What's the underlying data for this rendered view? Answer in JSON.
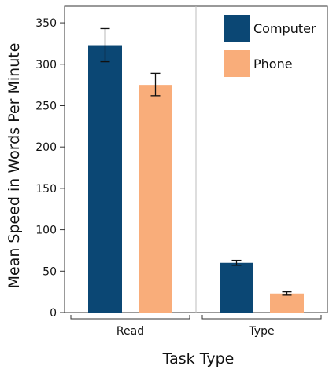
{
  "chart_data": {
    "type": "bar",
    "title": "",
    "xlabel": "Task Type",
    "ylabel": "Mean Speed in Words Per Minute",
    "categories": [
      "Read",
      "Type"
    ],
    "ylim": [
      0,
      370
    ],
    "yticks": [
      0,
      50,
      100,
      150,
      200,
      250,
      300,
      350
    ],
    "grid": false,
    "legend_position": "top-right",
    "series": [
      {
        "name": "Computer",
        "color": "#0b4774",
        "values": [
          323,
          60
        ],
        "error_low": [
          303,
          57
        ],
        "error_high": [
          343,
          63
        ]
      },
      {
        "name": "Phone",
        "color": "#f9ad7a",
        "values": [
          275,
          23
        ],
        "error_low": [
          262,
          21
        ],
        "error_high": [
          289,
          25
        ]
      }
    ]
  }
}
